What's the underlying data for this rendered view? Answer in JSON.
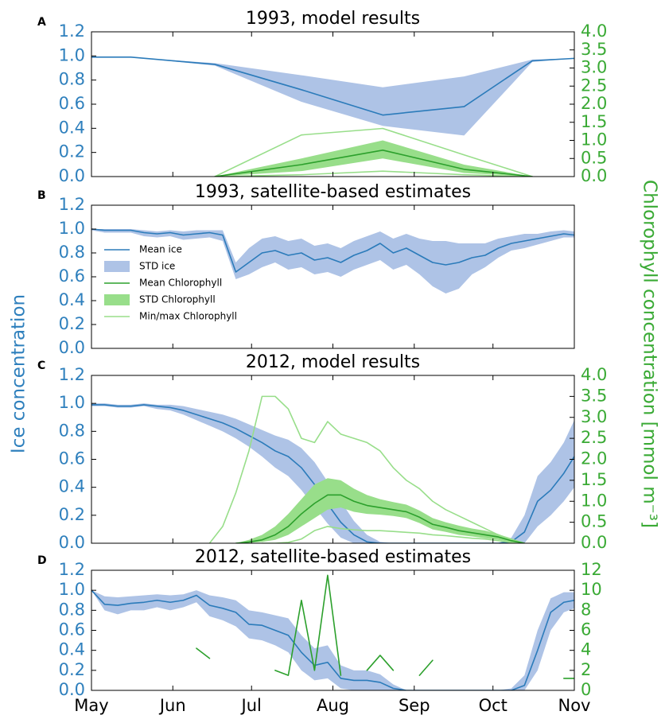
{
  "ylabel": "Ice concentration",
  "y2label": "Chlorophyll concentration [mmol m⁻³]",
  "ylabel_color": "#2f80bd",
  "y2label_color": "#3aaa35",
  "legend": {
    "corner": "center left",
    "panel": 1,
    "entries": [
      {
        "name": "Mean ice",
        "color": "#2b7bba",
        "kind": "line"
      },
      {
        "name": "STD ice",
        "color": "#aec3e6",
        "kind": "patch"
      },
      {
        "name": "Mean Chlorophyll",
        "color": "#2ca02c",
        "kind": "line"
      },
      {
        "name": "STD Chlorophyll",
        "color": "#98de8a",
        "kind": "patch"
      },
      {
        "name": "Min/max Chlorophyll",
        "color": "#98de8a",
        "kind": "line"
      }
    ]
  },
  "chart_data": [
    {
      "type": "line",
      "panel_label": "A",
      "title": "1993, model results",
      "x": [
        0,
        15,
        47,
        80,
        111,
        142,
        168,
        184
      ],
      "xlim": [
        0,
        184
      ],
      "ylim": [
        0,
        1.2
      ],
      "yticks": [
        {
          "value": 0,
          "label": "0.0"
        },
        0.2,
        0.4,
        0.6,
        0.8,
        {
          "value": 1,
          "label": "1.0"
        },
        1.2
      ],
      "y2lim": [
        0,
        4
      ],
      "y2ticks": [
        {
          "value": 0,
          "label": "0.0"
        },
        0.5,
        {
          "value": 1,
          "label": "1.0"
        },
        1.5,
        {
          "value": 2,
          "label": "2.0"
        },
        2.5,
        {
          "value": 3,
          "label": "3.0"
        },
        3.5,
        {
          "value": 4,
          "label": "4.0"
        }
      ],
      "series": [
        {
          "kind": "band",
          "axis": "y",
          "color": "#aec3e6",
          "lower": [
            0.99,
            0.99,
            0.92,
            0.62,
            0.42,
            0.34,
            0.95,
            0.98
          ],
          "upper": [
            0.99,
            0.99,
            0.94,
            0.84,
            0.74,
            0.83,
            0.97,
            0.98
          ]
        },
        {
          "kind": "line",
          "axis": "y",
          "color": "#2b7bba",
          "values": [
            0.99,
            0.99,
            0.93,
            0.72,
            0.51,
            0.58,
            0.96,
            0.98
          ]
        },
        {
          "kind": "band",
          "axis": "y2",
          "color": "#98de8a",
          "lower": [
            null,
            null,
            0,
            0.15,
            0.5,
            0.1,
            0,
            null
          ],
          "upper": [
            null,
            null,
            0,
            0.5,
            1.0,
            0.33,
            0,
            null
          ]
        },
        {
          "kind": "line",
          "axis": "y2",
          "color": "#98de8a",
          "values": [
            null,
            null,
            0,
            1.15,
            1.33,
            0.6,
            0,
            null
          ]
        },
        {
          "kind": "line",
          "axis": "y2",
          "color": "#98de8a",
          "values": [
            null,
            null,
            0,
            0.05,
            0.15,
            0.05,
            0,
            null
          ]
        },
        {
          "kind": "line",
          "axis": "y2",
          "color": "#2ca02c",
          "values": [
            null,
            null,
            0,
            0.33,
            0.73,
            0.2,
            0,
            null
          ]
        }
      ]
    },
    {
      "type": "line",
      "panel_label": "B",
      "title": "1993, satellite-based estimates",
      "x": [
        0,
        5,
        10,
        15,
        20,
        25,
        30,
        35,
        40,
        45,
        50,
        55,
        60,
        65,
        70,
        75,
        80,
        85,
        90,
        95,
        100,
        105,
        110,
        115,
        120,
        125,
        130,
        135,
        140,
        145,
        150,
        155,
        160,
        165,
        170,
        175,
        180,
        184
      ],
      "xlim": [
        0,
        184
      ],
      "ylim": [
        0,
        1.2
      ],
      "yticks": [
        {
          "value": 0,
          "label": "0.0"
        },
        0.2,
        0.4,
        0.6,
        0.8,
        {
          "value": 1,
          "label": "1.0"
        },
        1.2
      ],
      "series": [
        {
          "kind": "band",
          "axis": "y",
          "color": "#aec3e6",
          "lower": [
            0.99,
            0.97,
            0.97,
            0.97,
            0.94,
            0.93,
            0.94,
            0.91,
            0.92,
            0.93,
            0.9,
            0.58,
            0.62,
            0.68,
            0.72,
            0.66,
            0.68,
            0.62,
            0.64,
            0.6,
            0.66,
            0.7,
            0.74,
            0.66,
            0.7,
            0.62,
            0.52,
            0.46,
            0.5,
            0.62,
            0.68,
            0.76,
            0.82,
            0.84,
            0.87,
            0.9,
            0.93,
            0.93
          ],
          "upper": [
            1.0,
            1.0,
            1.0,
            1.0,
            0.99,
            0.98,
            0.99,
            0.98,
            0.99,
            0.99,
            0.99,
            0.72,
            0.84,
            0.92,
            0.94,
            0.9,
            0.92,
            0.86,
            0.88,
            0.84,
            0.9,
            0.94,
            0.98,
            0.92,
            0.96,
            0.92,
            0.9,
            0.9,
            0.88,
            0.88,
            0.88,
            0.92,
            0.94,
            0.96,
            0.96,
            0.98,
            0.99,
            0.98
          ]
        },
        {
          "kind": "line",
          "axis": "y",
          "color": "#2b7bba",
          "values": [
            1.0,
            0.99,
            0.99,
            0.99,
            0.97,
            0.96,
            0.97,
            0.95,
            0.96,
            0.97,
            0.95,
            0.64,
            0.72,
            0.8,
            0.82,
            0.78,
            0.8,
            0.74,
            0.76,
            0.72,
            0.78,
            0.82,
            0.88,
            0.8,
            0.84,
            0.78,
            0.72,
            0.7,
            0.72,
            0.76,
            0.78,
            0.84,
            0.88,
            0.9,
            0.92,
            0.94,
            0.96,
            0.95
          ]
        }
      ]
    },
    {
      "type": "line",
      "panel_label": "C",
      "title": "2012, model results",
      "x": [
        0,
        5,
        10,
        15,
        20,
        25,
        30,
        35,
        40,
        45,
        50,
        55,
        60,
        65,
        70,
        75,
        80,
        85,
        90,
        95,
        100,
        105,
        110,
        115,
        120,
        125,
        130,
        135,
        140,
        145,
        150,
        155,
        160,
        165,
        170,
        175,
        180,
        184
      ],
      "xlim": [
        0,
        184
      ],
      "ylim": [
        0,
        1.2
      ],
      "yticks": [
        {
          "value": 0,
          "label": "0.0"
        },
        0.2,
        0.4,
        0.6,
        0.8,
        {
          "value": 1,
          "label": "1.0"
        },
        1.2
      ],
      "y2lim": [
        0,
        4
      ],
      "y2ticks": [
        {
          "value": 0,
          "label": "0.0"
        },
        0.5,
        {
          "value": 1,
          "label": "1.0"
        },
        1.5,
        {
          "value": 2,
          "label": "2.0"
        },
        2.5,
        {
          "value": 3,
          "label": "3.0"
        },
        3.5,
        {
          "value": 4,
          "label": "4.0"
        }
      ],
      "series": [
        {
          "kind": "band",
          "axis": "y",
          "color": "#aec3e6",
          "lower": [
            0.98,
            0.98,
            0.97,
            0.97,
            0.98,
            0.96,
            0.95,
            0.92,
            0.88,
            0.84,
            0.8,
            0.75,
            0.69,
            0.62,
            0.54,
            0.48,
            0.38,
            0.26,
            0.14,
            0.04,
            0,
            0,
            0,
            0,
            0,
            0,
            0,
            0,
            0,
            0,
            0,
            0,
            0,
            0,
            0.12,
            0.2,
            0.3,
            0.4
          ],
          "upper": [
            1.0,
            1.0,
            0.99,
            0.99,
            1.0,
            0.99,
            0.99,
            0.98,
            0.96,
            0.94,
            0.92,
            0.89,
            0.85,
            0.81,
            0.77,
            0.74,
            0.68,
            0.58,
            0.44,
            0.3,
            0.16,
            0.06,
            0.01,
            0,
            0,
            0,
            0,
            0,
            0,
            0,
            0,
            0,
            0.04,
            0.2,
            0.48,
            0.58,
            0.72,
            0.88
          ]
        },
        {
          "kind": "line",
          "axis": "y",
          "color": "#2b7bba",
          "values": [
            0.99,
            0.99,
            0.98,
            0.98,
            0.99,
            0.98,
            0.97,
            0.95,
            0.92,
            0.89,
            0.86,
            0.82,
            0.77,
            0.72,
            0.66,
            0.62,
            0.54,
            0.42,
            0.28,
            0.15,
            0.06,
            0.01,
            0,
            0,
            0,
            0,
            0,
            0,
            0,
            0,
            0,
            0,
            0.01,
            0.08,
            0.3,
            0.38,
            0.5,
            0.62
          ]
        },
        {
          "kind": "band",
          "axis": "y2",
          "color": "#98de8a",
          "lower": [
            null,
            null,
            null,
            null,
            null,
            null,
            null,
            null,
            null,
            null,
            null,
            0,
            0.01,
            0.03,
            0.08,
            0.2,
            0.4,
            0.6,
            0.8,
            0.85,
            0.75,
            0.7,
            0.68,
            0.65,
            0.6,
            0.48,
            0.33,
            0.27,
            0.2,
            0.16,
            0.12,
            0.08,
            0.03,
            0,
            null,
            null,
            null,
            null
          ],
          "upper": [
            null,
            null,
            null,
            null,
            null,
            null,
            null,
            null,
            null,
            null,
            null,
            0,
            0.08,
            0.2,
            0.4,
            0.7,
            1.05,
            1.4,
            1.55,
            1.5,
            1.3,
            1.15,
            1.05,
            0.98,
            0.92,
            0.78,
            0.6,
            0.5,
            0.42,
            0.35,
            0.3,
            0.22,
            0.1,
            0,
            null,
            null,
            null,
            null
          ]
        },
        {
          "kind": "line",
          "axis": "y2",
          "color": "#98de8a",
          "values": [
            null,
            null,
            null,
            null,
            null,
            null,
            null,
            null,
            null,
            0,
            0.4,
            1.2,
            2.2,
            3.5,
            3.5,
            3.2,
            2.5,
            2.4,
            2.9,
            2.6,
            2.5,
            2.4,
            2.2,
            1.8,
            1.5,
            1.3,
            1.0,
            0.8,
            0.65,
            0.5,
            0.35,
            0.2,
            0.1,
            0,
            null,
            null,
            null,
            null
          ]
        },
        {
          "kind": "line",
          "axis": "y2",
          "color": "#98de8a",
          "values": [
            null,
            null,
            null,
            null,
            null,
            null,
            null,
            null,
            null,
            null,
            null,
            null,
            null,
            0,
            0,
            0.02,
            0.1,
            0.3,
            0.4,
            0.35,
            0.32,
            0.3,
            0.3,
            0.28,
            0.26,
            0.24,
            0.2,
            0.18,
            0.15,
            0.12,
            0.1,
            0.06,
            0.02,
            0,
            null,
            null,
            null,
            null
          ]
        },
        {
          "kind": "line",
          "axis": "y2",
          "color": "#2ca02c",
          "values": [
            null,
            null,
            null,
            null,
            null,
            null,
            null,
            null,
            null,
            null,
            null,
            0,
            0.03,
            0.08,
            0.2,
            0.4,
            0.7,
            0.95,
            1.15,
            1.15,
            1.0,
            0.9,
            0.85,
            0.8,
            0.75,
            0.62,
            0.45,
            0.38,
            0.3,
            0.25,
            0.2,
            0.15,
            0.06,
            0,
            null,
            null,
            null,
            null
          ]
        }
      ]
    },
    {
      "type": "line",
      "panel_label": "D",
      "title": "2012, satellite-based estimates",
      "x": [
        0,
        5,
        10,
        15,
        20,
        25,
        30,
        35,
        40,
        45,
        50,
        55,
        60,
        65,
        70,
        75,
        80,
        85,
        90,
        95,
        100,
        105,
        110,
        115,
        120,
        125,
        130,
        135,
        140,
        145,
        150,
        155,
        160,
        165,
        170,
        175,
        180,
        184
      ],
      "xlim": [
        0,
        184
      ],
      "xticks": [
        {
          "value": 0,
          "label": "May"
        },
        {
          "value": 31,
          "label": "Jun"
        },
        {
          "value": 61,
          "label": "Jul"
        },
        {
          "value": 92,
          "label": "Aug"
        },
        {
          "value": 123,
          "label": "Sep"
        },
        {
          "value": 153,
          "label": "Oct"
        },
        {
          "value": 184,
          "label": "Nov"
        }
      ],
      "ylim": [
        0,
        1.2
      ],
      "yticks": [
        {
          "value": 0,
          "label": "0.0"
        },
        0.2,
        0.4,
        0.6,
        0.8,
        {
          "value": 1,
          "label": "1.0"
        },
        1.2
      ],
      "y2lim": [
        0,
        12
      ],
      "y2ticks": [
        0,
        2,
        4,
        6,
        8,
        10,
        12
      ],
      "series": [
        {
          "kind": "band",
          "axis": "y",
          "color": "#aec3e6",
          "lower": [
            1.0,
            0.8,
            0.76,
            0.8,
            0.8,
            0.83,
            0.8,
            0.83,
            0.88,
            0.74,
            0.7,
            0.64,
            0.52,
            0.5,
            0.45,
            0.38,
            0.2,
            0.1,
            0.12,
            0.02,
            0,
            0,
            0,
            0,
            0,
            0,
            0,
            0,
            0,
            0,
            0,
            0,
            0,
            0,
            0.2,
            0.6,
            0.78,
            0.82
          ],
          "upper": [
            1.0,
            0.94,
            0.93,
            0.94,
            0.95,
            0.96,
            0.95,
            0.96,
            1.0,
            0.95,
            0.93,
            0.9,
            0.8,
            0.78,
            0.75,
            0.72,
            0.55,
            0.42,
            0.45,
            0.25,
            0.2,
            0.2,
            0.16,
            0.06,
            0,
            0,
            0,
            0,
            0,
            0,
            0,
            0,
            0.02,
            0.15,
            0.6,
            0.92,
            0.98,
            0.98
          ]
        },
        {
          "kind": "line",
          "axis": "y",
          "color": "#2b7bba",
          "values": [
            1.0,
            0.86,
            0.85,
            0.87,
            0.88,
            0.9,
            0.88,
            0.9,
            0.95,
            0.85,
            0.82,
            0.78,
            0.66,
            0.65,
            0.6,
            0.55,
            0.38,
            0.25,
            0.28,
            0.12,
            0.1,
            0.1,
            0.08,
            0.02,
            0,
            0,
            0,
            0,
            0,
            0,
            0,
            0,
            0,
            0.05,
            0.4,
            0.78,
            0.88,
            0.9
          ]
        },
        {
          "kind": "line",
          "axis": "y2",
          "color": "#2ca02c",
          "values": [
            null,
            null,
            null,
            null,
            null,
            null,
            null,
            null,
            4.2,
            3.2,
            null,
            null,
            null,
            null,
            2.0,
            1.5,
            9.0,
            2.0,
            11.5,
            1.5,
            null,
            2.0,
            3.5,
            2.0,
            null,
            1.5,
            3.0,
            null,
            null,
            null,
            null,
            null,
            null,
            null,
            null,
            null,
            1.2,
            1.2
          ]
        }
      ]
    }
  ]
}
